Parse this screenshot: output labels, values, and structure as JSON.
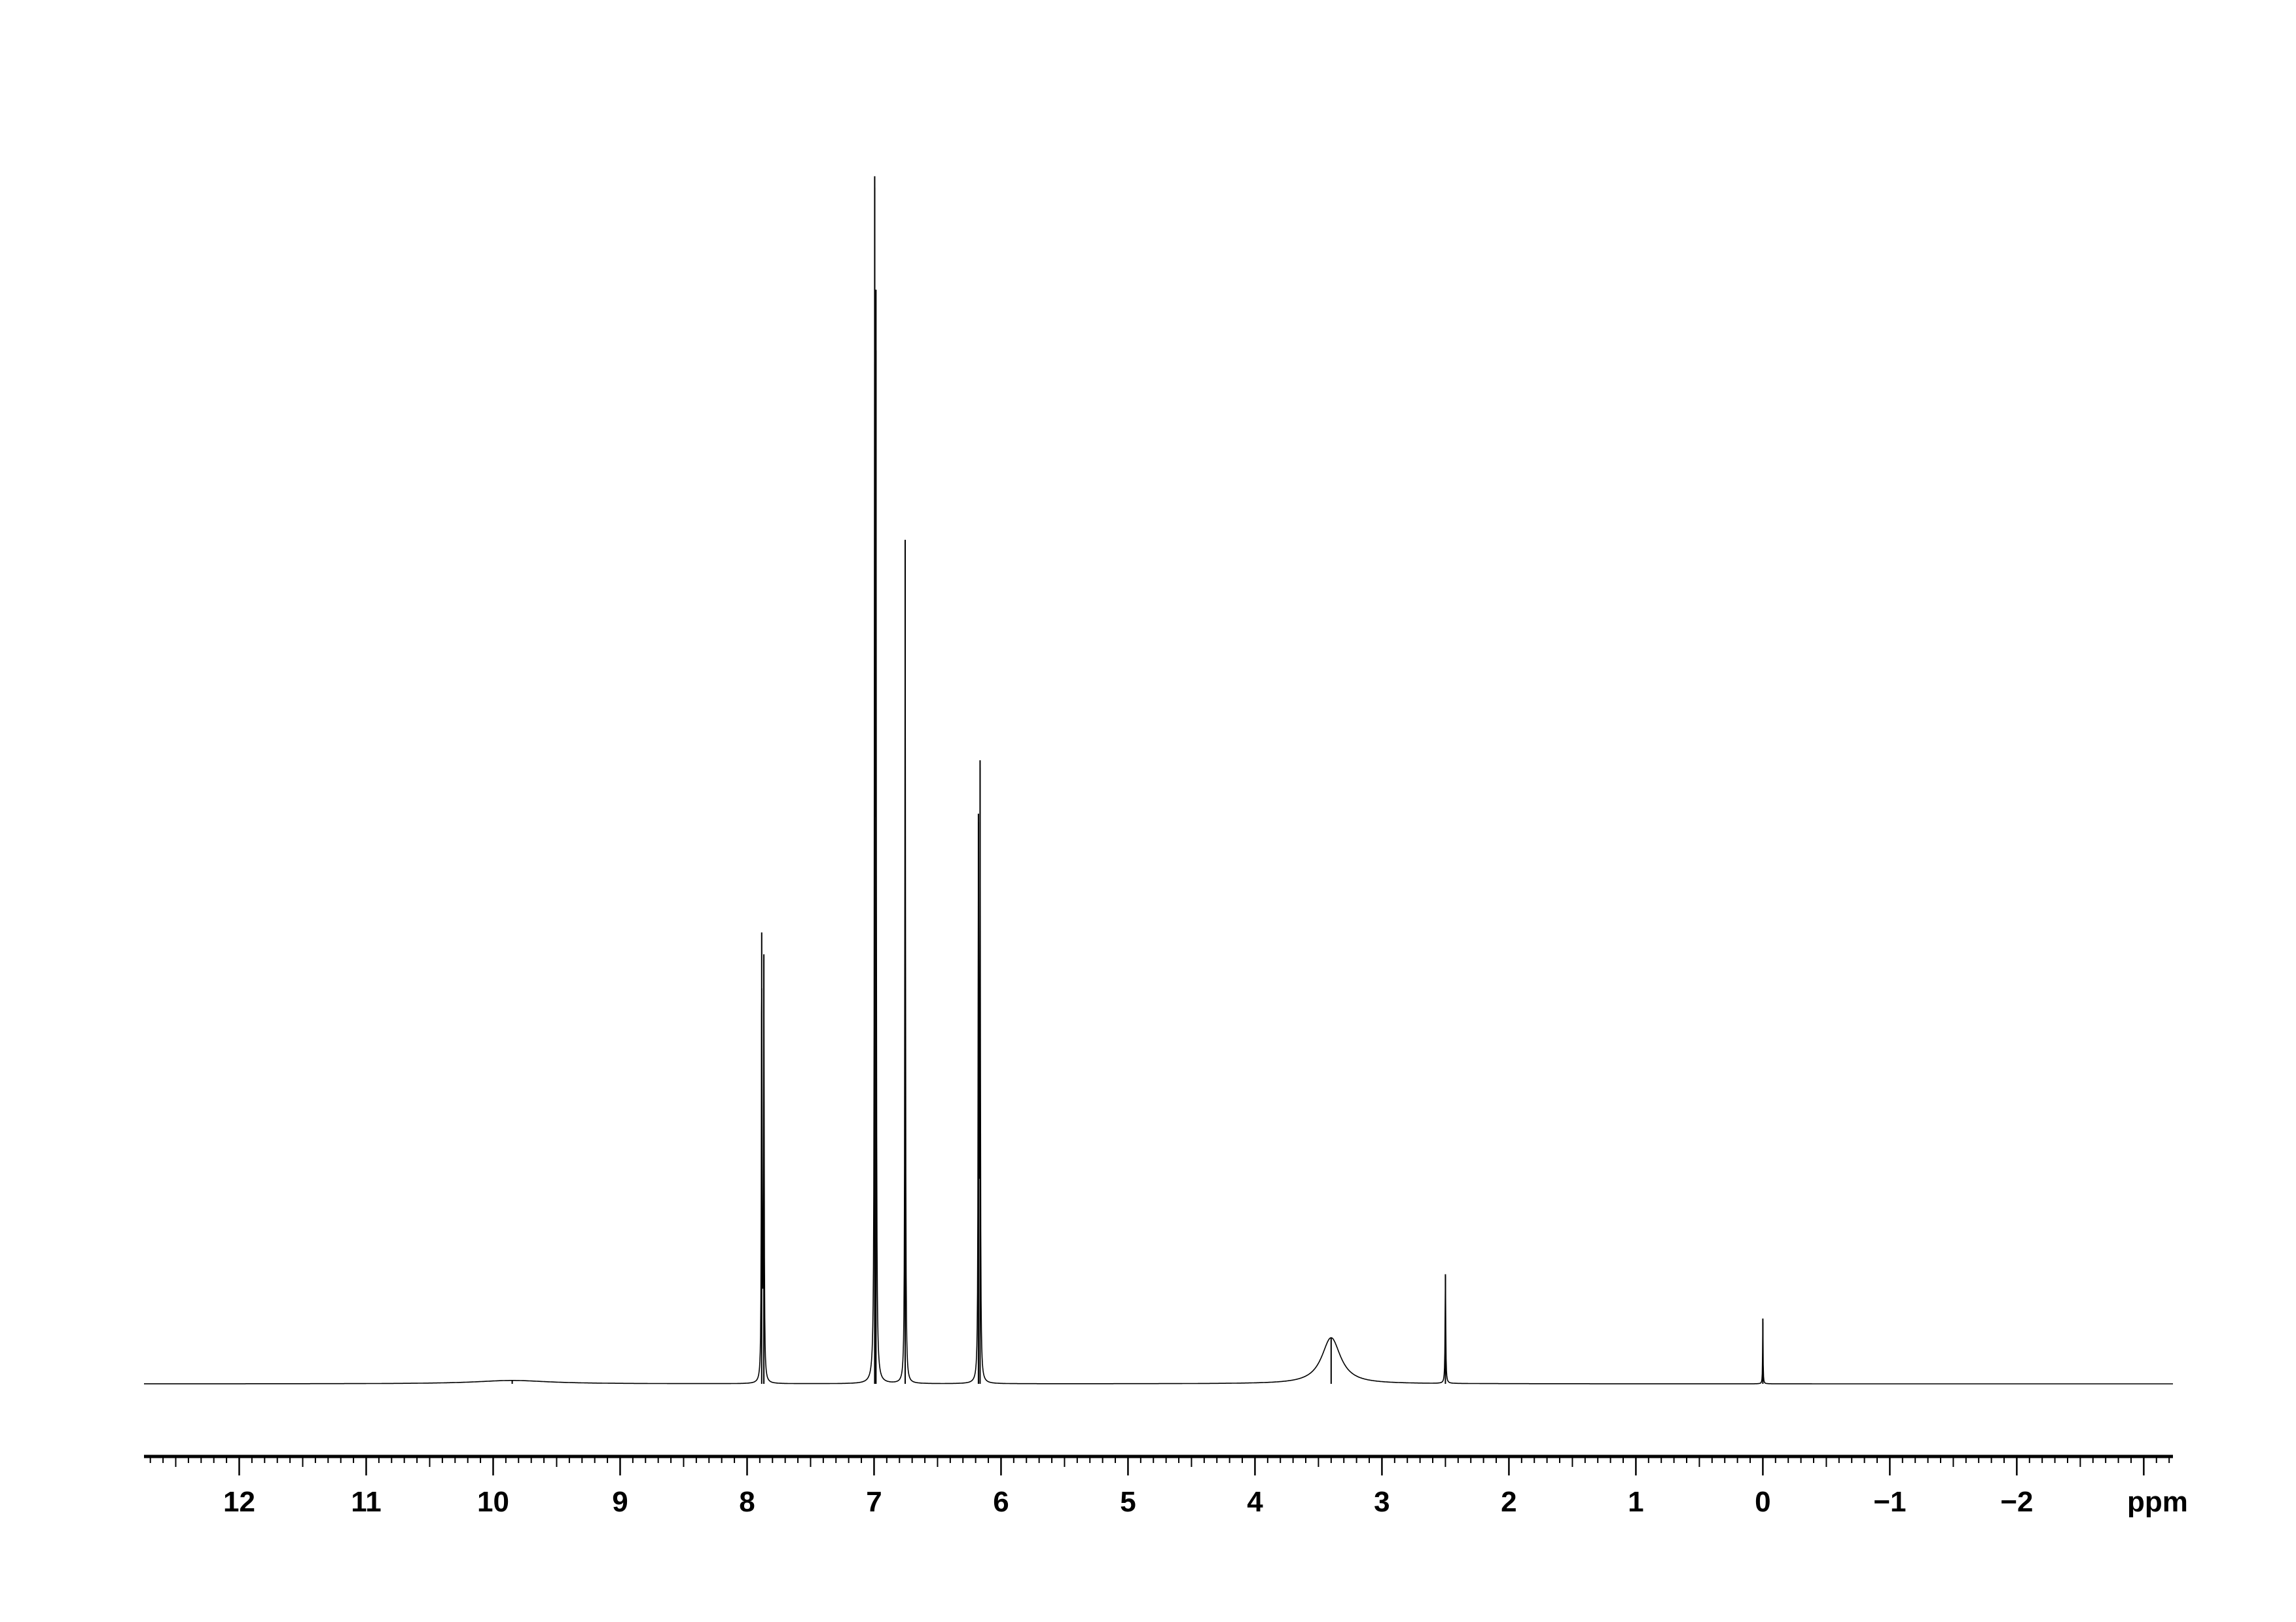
{
  "chart_data": {
    "type": "line",
    "title": "",
    "xlabel": "ppm",
    "ylabel": "",
    "x_reversed": true,
    "xlim": [
      12.75,
      -3.23
    ],
    "ylim": [
      0,
      1
    ],
    "grid": false,
    "tick_labels": [
      "12",
      "11",
      "10",
      "9",
      "8",
      "7",
      "6",
      "5",
      "4",
      "3",
      "2",
      "1",
      "0",
      "−1",
      "−2"
    ],
    "tick_values": [
      12,
      11,
      10,
      9,
      8,
      7,
      6,
      5,
      4,
      3,
      2,
      1,
      0,
      -1,
      -2
    ],
    "minor_tick_step": 0.1,
    "line_color": "#000000",
    "peaks": [
      {
        "ppm": 9.85,
        "intensity": 0.003,
        "width": 0.35
      },
      {
        "ppm": 7.885,
        "intensity": 0.39,
        "width": 0.003
      },
      {
        "ppm": 7.868,
        "intensity": 0.37,
        "width": 0.003
      },
      {
        "ppm": 6.995,
        "intensity": 1.0,
        "width": 0.003
      },
      {
        "ppm": 6.985,
        "intensity": 0.89,
        "width": 0.003
      },
      {
        "ppm": 6.755,
        "intensity": 0.75,
        "width": 0.003
      },
      {
        "ppm": 6.178,
        "intensity": 0.48,
        "width": 0.003
      },
      {
        "ppm": 6.165,
        "intensity": 0.53,
        "width": 0.003
      },
      {
        "ppm": 3.4,
        "intensity": 0.041,
        "width": 0.09
      },
      {
        "ppm": 2.5,
        "intensity": 0.097,
        "width": 0.003
      },
      {
        "ppm": 0.0,
        "intensity": 0.058,
        "width": 0.002
      }
    ]
  }
}
